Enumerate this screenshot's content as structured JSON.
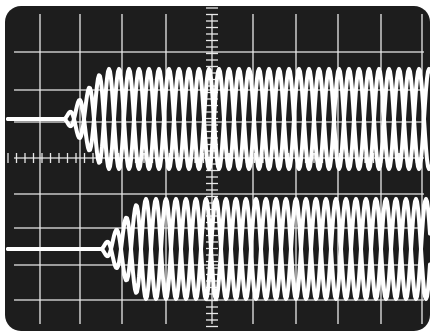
{
  "colors": {
    "frame": "#ffffff",
    "screen": "#1d1d1d",
    "graticule": "#e8e8e8",
    "trace": "#ffffff"
  },
  "traces": [
    {
      "name": "upper-trace"
    },
    {
      "name": "lower-trace"
    }
  ]
}
